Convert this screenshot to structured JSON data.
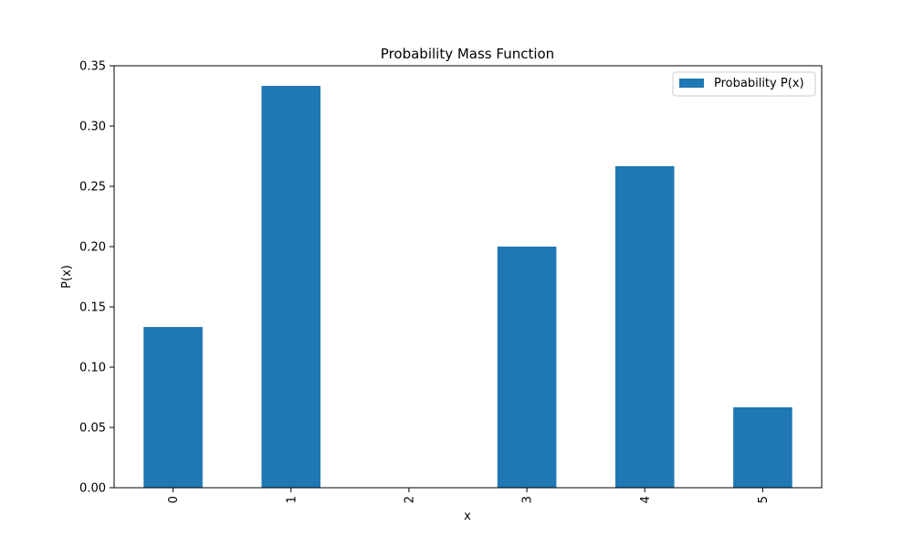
{
  "chart_data": {
    "type": "bar",
    "title": "Probability Mass Function",
    "xlabel": "x",
    "ylabel": "P(x)",
    "categories": [
      "0",
      "1",
      "2",
      "3",
      "4",
      "5"
    ],
    "series": [
      {
        "name": "Probability P(x)",
        "values": [
          0.1333,
          0.3333,
          0.0,
          0.2,
          0.2667,
          0.0667
        ]
      }
    ],
    "ylim": [
      0,
      0.35
    ],
    "yticks": [
      "0.00",
      "0.05",
      "0.10",
      "0.15",
      "0.20",
      "0.25",
      "0.30",
      "0.35"
    ],
    "grid": false,
    "legend_position": "top-right",
    "x_tick_rotation": "vertical",
    "colors": {
      "bar": "#1f77b4",
      "axis": "#000000",
      "background": "#ffffff"
    }
  }
}
